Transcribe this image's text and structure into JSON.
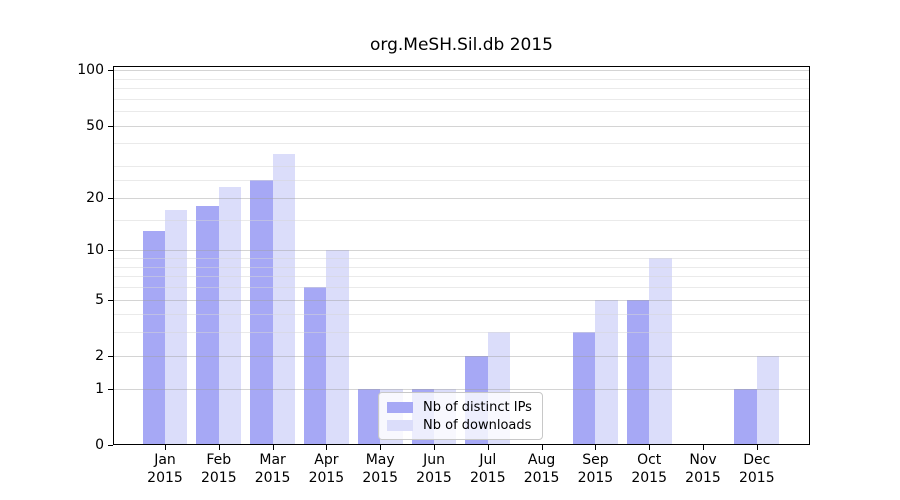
{
  "title": "org.MeSH.Sil.db 2015",
  "chart_data": {
    "type": "bar",
    "title": "org.MeSH.Sil.db 2015",
    "categories": [
      "Jan",
      "Feb",
      "Mar",
      "Apr",
      "May",
      "Jun",
      "Jul",
      "Aug",
      "Sep",
      "Oct",
      "Nov",
      "Dec"
    ],
    "year_label": "2015",
    "series": [
      {
        "name": "Nb of distinct IPs",
        "color": "#a6a8f5",
        "values": [
          13,
          18,
          25,
          6,
          1,
          1,
          2,
          0,
          3,
          5,
          0,
          1
        ]
      },
      {
        "name": "Nb of downloads",
        "color": "#dbddfa",
        "values": [
          17,
          23,
          35,
          10,
          1,
          1,
          3,
          0,
          5,
          9,
          0,
          2
        ]
      }
    ],
    "y_axis": {
      "scale": "log10(value+1)",
      "tick_values": [
        0,
        1,
        2,
        5,
        10,
        20,
        50,
        100
      ],
      "minor_tick_values": [
        3,
        4,
        6,
        7,
        8,
        9,
        15,
        25,
        30,
        40,
        60,
        70,
        80,
        90
      ],
      "range": [
        0,
        100
      ]
    },
    "legend": {
      "position": "inside-bottom-center",
      "labels": [
        "Nb of distinct IPs",
        "Nb of downloads"
      ]
    },
    "grid": true
  },
  "colors": {
    "ips_bar": "#a6a8f5",
    "downloads_bar": "#dbddfa",
    "major_grid": "#d4d4d4",
    "minor_grid": "#ececec",
    "axis": "#000000",
    "background": "#ffffff"
  }
}
